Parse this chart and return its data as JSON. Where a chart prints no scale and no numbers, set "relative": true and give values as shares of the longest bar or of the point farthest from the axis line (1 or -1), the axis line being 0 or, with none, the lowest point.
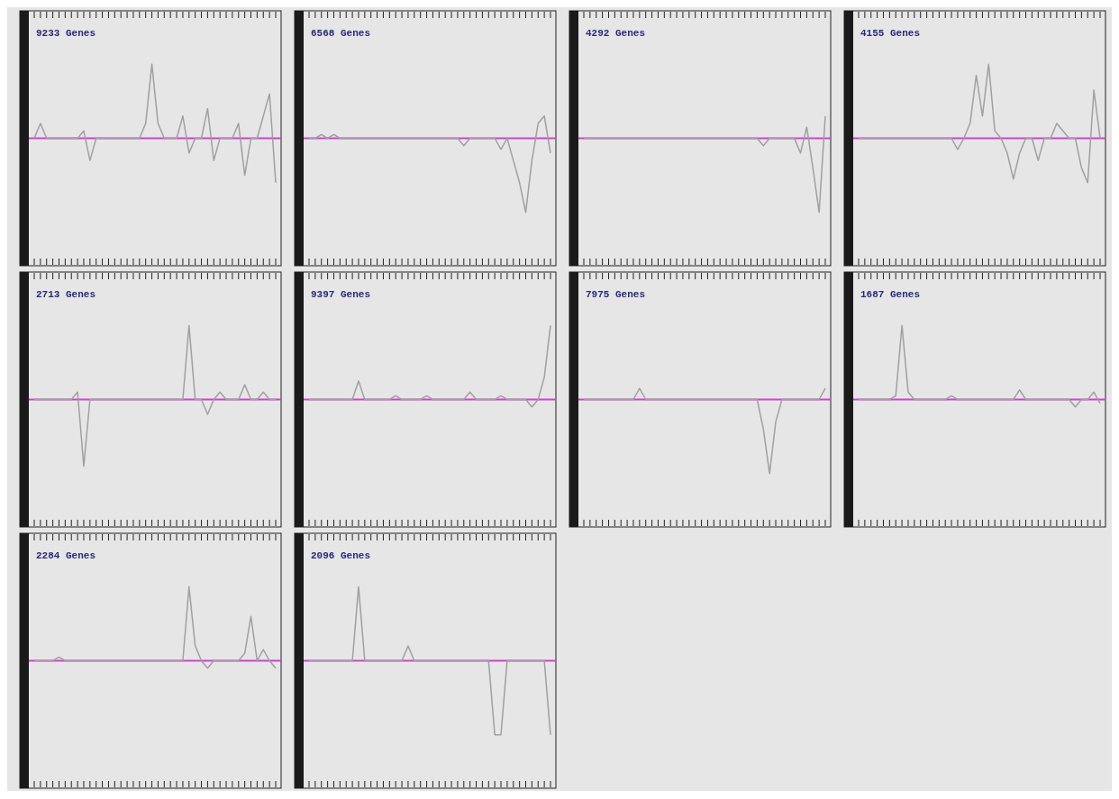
{
  "chart_data": [
    {
      "type": "line",
      "title": "9233 Genes",
      "relative": true,
      "categories": [
        null,
        null,
        null,
        null,
        null,
        null,
        null,
        null,
        null,
        null,
        null,
        null,
        null,
        null,
        null,
        null,
        null,
        null,
        null,
        null,
        null,
        null,
        null,
        null,
        null,
        null,
        null,
        null,
        null,
        null,
        null,
        null,
        null,
        null,
        null,
        null,
        null,
        null,
        null,
        null
      ],
      "ref_lines": [
        {
          "axis": "y",
          "value": 0,
          "color": "#cc44cc"
        }
      ],
      "series": [
        {
          "color": "#a0a0a0",
          "values": [
            0,
            0.2,
            0,
            0,
            0,
            0,
            0,
            0,
            0.1,
            -0.3,
            0,
            0,
            0,
            0,
            0,
            0,
            0,
            0,
            0.2,
            1,
            0.2,
            0,
            0,
            0,
            0.3,
            -0.2,
            0,
            0,
            0.4,
            -0.3,
            0,
            0,
            0,
            0.2,
            -0.5,
            0,
            0,
            0.3,
            0.6,
            -0.6
          ]
        }
      ]
    },
    {
      "type": "line",
      "title": "6568 Genes",
      "relative": true,
      "categories": [
        null,
        null,
        null,
        null,
        null,
        null,
        null,
        null,
        null,
        null,
        null,
        null,
        null,
        null,
        null,
        null,
        null,
        null,
        null,
        null,
        null,
        null,
        null,
        null,
        null,
        null,
        null,
        null,
        null,
        null,
        null,
        null,
        null,
        null,
        null,
        null,
        null,
        null,
        null,
        null
      ],
      "ref_lines": [
        {
          "axis": "y",
          "value": 0,
          "color": "#cc44cc"
        }
      ],
      "series": [
        {
          "color": "#a0a0a0",
          "values": [
            0,
            0,
            0.05,
            0,
            0.05,
            0,
            0,
            0,
            0,
            0,
            0,
            0,
            0,
            0,
            0,
            0,
            0,
            0,
            0,
            0,
            0,
            0,
            0,
            0,
            0,
            -0.1,
            0,
            0,
            0,
            0,
            0,
            -0.15,
            0,
            -0.3,
            -0.6,
            -1,
            -0.3,
            0.2,
            0.3,
            -0.2
          ]
        }
      ]
    },
    {
      "type": "line",
      "title": "4292 Genes",
      "relative": true,
      "categories": [
        null,
        null,
        null,
        null,
        null,
        null,
        null,
        null,
        null,
        null,
        null,
        null,
        null,
        null,
        null,
        null,
        null,
        null,
        null,
        null,
        null,
        null,
        null,
        null,
        null,
        null,
        null,
        null,
        null,
        null,
        null,
        null,
        null,
        null,
        null,
        null,
        null,
        null,
        null,
        null
      ],
      "ref_lines": [
        {
          "axis": "y",
          "value": 0,
          "color": "#cc44cc"
        }
      ],
      "series": [
        {
          "color": "#a0a0a0",
          "values": [
            0,
            0,
            0,
            0,
            0,
            0,
            0,
            0,
            0,
            0,
            0,
            0,
            0,
            0,
            0,
            0,
            0,
            0,
            0,
            0,
            0,
            0,
            0,
            0,
            0,
            0,
            0,
            0,
            0,
            -0.1,
            0,
            0,
            0,
            0,
            0,
            -0.2,
            0.15,
            -0.4,
            -1,
            0.3
          ]
        }
      ]
    },
    {
      "type": "line",
      "title": "4155 Genes",
      "relative": true,
      "categories": [
        null,
        null,
        null,
        null,
        null,
        null,
        null,
        null,
        null,
        null,
        null,
        null,
        null,
        null,
        null,
        null,
        null,
        null,
        null,
        null,
        null,
        null,
        null,
        null,
        null,
        null,
        null,
        null,
        null,
        null,
        null,
        null,
        null,
        null,
        null,
        null,
        null,
        null,
        null,
        null
      ],
      "ref_lines": [
        {
          "axis": "y",
          "value": 0,
          "color": "#cc44cc"
        }
      ],
      "series": [
        {
          "color": "#a0a0a0",
          "values": [
            0,
            0,
            0,
            0,
            0,
            0,
            0,
            0,
            0,
            0,
            0,
            0,
            0,
            0,
            0,
            0,
            -0.15,
            0,
            0.2,
            0.85,
            0.3,
            1,
            0.1,
            0,
            -0.2,
            -0.55,
            -0.2,
            0,
            0,
            -0.3,
            0,
            0,
            0.2,
            0.1,
            0,
            0,
            -0.4,
            -0.6,
            0.65,
            0
          ]
        }
      ]
    },
    {
      "type": "line",
      "title": "2713 Genes",
      "relative": true,
      "categories": [
        null,
        null,
        null,
        null,
        null,
        null,
        null,
        null,
        null,
        null,
        null,
        null,
        null,
        null,
        null,
        null,
        null,
        null,
        null,
        null,
        null,
        null,
        null,
        null,
        null,
        null,
        null,
        null,
        null,
        null,
        null,
        null,
        null,
        null,
        null,
        null,
        null,
        null,
        null,
        null
      ],
      "ref_lines": [
        {
          "axis": "y",
          "value": 0,
          "color": "#cc44cc"
        }
      ],
      "series": [
        {
          "color": "#a0a0a0",
          "values": [
            0,
            0,
            0,
            0,
            0,
            0,
            0,
            0.1,
            -0.9,
            0,
            0,
            0,
            0,
            0,
            0,
            0,
            0,
            0,
            0,
            0,
            0,
            0,
            0,
            0,
            0,
            1,
            0,
            0,
            -0.2,
            0,
            0.1,
            0,
            0,
            0,
            0.2,
            0,
            0,
            0.1,
            0,
            0
          ]
        }
      ]
    },
    {
      "type": "line",
      "title": "9397 Genes",
      "relative": true,
      "categories": [
        null,
        null,
        null,
        null,
        null,
        null,
        null,
        null,
        null,
        null,
        null,
        null,
        null,
        null,
        null,
        null,
        null,
        null,
        null,
        null,
        null,
        null,
        null,
        null,
        null,
        null,
        null,
        null,
        null,
        null,
        null,
        null,
        null,
        null,
        null,
        null,
        null,
        null,
        null,
        null
      ],
      "ref_lines": [
        {
          "axis": "y",
          "value": 0,
          "color": "#cc44cc"
        }
      ],
      "series": [
        {
          "color": "#a0a0a0",
          "values": [
            0,
            0,
            0,
            0,
            0,
            0,
            0,
            0,
            0.25,
            0,
            0,
            0,
            0,
            0,
            0.05,
            0,
            0,
            0,
            0,
            0.05,
            0,
            0,
            0,
            0,
            0,
            0,
            0.1,
            0,
            0,
            0,
            0,
            0.05,
            0,
            0,
            0,
            0,
            -0.1,
            0,
            0.3,
            1
          ]
        }
      ]
    },
    {
      "type": "line",
      "title": "7975 Genes",
      "relative": true,
      "categories": [
        null,
        null,
        null,
        null,
        null,
        null,
        null,
        null,
        null,
        null,
        null,
        null,
        null,
        null,
        null,
        null,
        null,
        null,
        null,
        null,
        null,
        null,
        null,
        null,
        null,
        null,
        null,
        null,
        null,
        null,
        null,
        null,
        null,
        null,
        null,
        null,
        null,
        null,
        null,
        null
      ],
      "ref_lines": [
        {
          "axis": "y",
          "value": 0,
          "color": "#cc44cc"
        }
      ],
      "series": [
        {
          "color": "#a0a0a0",
          "values": [
            0,
            0,
            0,
            0,
            0,
            0,
            0,
            0,
            0,
            0.15,
            0,
            0,
            0,
            0,
            0,
            0,
            0,
            0,
            0,
            0,
            0,
            0,
            0,
            0,
            0,
            0,
            0,
            0,
            0,
            -0.4,
            -1,
            -0.3,
            0,
            0,
            0,
            0,
            0,
            0,
            0,
            0.15
          ]
        }
      ]
    },
    {
      "type": "line",
      "title": "1687 Genes",
      "relative": true,
      "categories": [
        null,
        null,
        null,
        null,
        null,
        null,
        null,
        null,
        null,
        null,
        null,
        null,
        null,
        null,
        null,
        null,
        null,
        null,
        null,
        null,
        null,
        null,
        null,
        null,
        null,
        null,
        null,
        null,
        null,
        null,
        null,
        null,
        null,
        null,
        null,
        null,
        null,
        null,
        null,
        null
      ],
      "ref_lines": [
        {
          "axis": "y",
          "value": 0,
          "color": "#cc44cc"
        }
      ],
      "series": [
        {
          "color": "#a0a0a0",
          "values": [
            0,
            0,
            0,
            0,
            0,
            0,
            0.05,
            1,
            0.1,
            0,
            0,
            0,
            0,
            0,
            0,
            0.05,
            0,
            0,
            0,
            0,
            0,
            0,
            0,
            0,
            0,
            0,
            0.13,
            0,
            0,
            0,
            0,
            0,
            0,
            0,
            0,
            -0.1,
            0,
            0,
            0.1,
            -0.05
          ]
        }
      ]
    },
    {
      "type": "line",
      "title": "2284 Genes",
      "relative": true,
      "categories": [
        null,
        null,
        null,
        null,
        null,
        null,
        null,
        null,
        null,
        null,
        null,
        null,
        null,
        null,
        null,
        null,
        null,
        null,
        null,
        null,
        null,
        null,
        null,
        null,
        null,
        null,
        null,
        null,
        null,
        null,
        null,
        null,
        null,
        null,
        null,
        null,
        null,
        null,
        null,
        null
      ],
      "ref_lines": [
        {
          "axis": "y",
          "value": 0,
          "color": "#cc44cc"
        }
      ],
      "series": [
        {
          "color": "#a0a0a0",
          "values": [
            0,
            0,
            0,
            0,
            0.05,
            0,
            0,
            0,
            0,
            0,
            0,
            0,
            0,
            0,
            0,
            0,
            0,
            0,
            0,
            0,
            0,
            0,
            0,
            0,
            0,
            1,
            0.2,
            0,
            -0.1,
            0,
            0,
            0,
            0,
            0,
            0.1,
            0.6,
            0,
            0.15,
            0,
            -0.1
          ]
        }
      ]
    },
    {
      "type": "line",
      "title": "2096 Genes",
      "relative": true,
      "categories": [
        null,
        null,
        null,
        null,
        null,
        null,
        null,
        null,
        null,
        null,
        null,
        null,
        null,
        null,
        null,
        null,
        null,
        null,
        null,
        null,
        null,
        null,
        null,
        null,
        null,
        null,
        null,
        null,
        null,
        null,
        null,
        null,
        null,
        null,
        null,
        null,
        null,
        null,
        null,
        null
      ],
      "ref_lines": [
        {
          "axis": "y",
          "value": 0,
          "color": "#cc44cc"
        }
      ],
      "series": [
        {
          "color": "#a0a0a0",
          "values": [
            0,
            0,
            0,
            0,
            0,
            0,
            0,
            0,
            1,
            0,
            0,
            0,
            0,
            0,
            0,
            0,
            0.2,
            0,
            0,
            0,
            0,
            0,
            0,
            0,
            0,
            0,
            0,
            0,
            0,
            0,
            -1,
            -1,
            0,
            0,
            0,
            0,
            0,
            0,
            0,
            -1
          ]
        }
      ]
    }
  ]
}
